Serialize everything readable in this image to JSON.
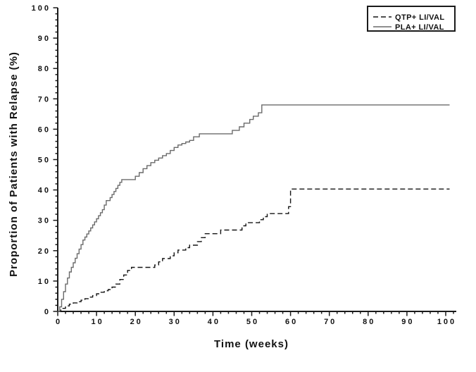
{
  "chart_data": {
    "type": "line",
    "subtype": "step-survival-curve",
    "xlabel": "Time (weeks)",
    "ylabel": "Proportion of Patients with Relapse (%)",
    "xlim": [
      0,
      102
    ],
    "ylim": [
      0,
      100
    ],
    "x_major_ticks": [
      0,
      10,
      20,
      30,
      40,
      50,
      60,
      70,
      80,
      90,
      100
    ],
    "x_minor_step": 2,
    "y_major_ticks": [
      0,
      10,
      20,
      30,
      40,
      50,
      60,
      70,
      80,
      90,
      100
    ],
    "y_minor_step": 2,
    "grid": false,
    "legend": {
      "position": "top-right",
      "entries": [
        {
          "label": "QTP+ LI/VAL",
          "style": "dashed",
          "color": "#151515"
        },
        {
          "label": "PLA+ LI/VAL",
          "style": "solid",
          "color": "#6a6a6a"
        }
      ]
    },
    "series": [
      {
        "name": "QTP+ LI/VAL",
        "style": "dashed",
        "color": "#151515",
        "final_value": 40.3,
        "points": [
          [
            0,
            0
          ],
          [
            0.8,
            1
          ],
          [
            2,
            1.8
          ],
          [
            3,
            2.4
          ],
          [
            4,
            2.8
          ],
          [
            5,
            3.2
          ],
          [
            6,
            3.7
          ],
          [
            7,
            4.2
          ],
          [
            8,
            4.7
          ],
          [
            9,
            5.2
          ],
          [
            10,
            5.8
          ],
          [
            11,
            6.3
          ],
          [
            12,
            6.8
          ],
          [
            13,
            7.2
          ],
          [
            14,
            8
          ],
          [
            15,
            9
          ],
          [
            16,
            10.5
          ],
          [
            17,
            12
          ],
          [
            18,
            13.5
          ],
          [
            19,
            14.5
          ],
          [
            25,
            15.3
          ],
          [
            26,
            16.3
          ],
          [
            27,
            17.4
          ],
          [
            29,
            18.3
          ],
          [
            30,
            19.3
          ],
          [
            31,
            20.2
          ],
          [
            33,
            21
          ],
          [
            34,
            21.8
          ],
          [
            36,
            23
          ],
          [
            37,
            24.3
          ],
          [
            38,
            25.6
          ],
          [
            42,
            26.8
          ],
          [
            47.5,
            28.2
          ],
          [
            48.5,
            29.2
          ],
          [
            52,
            30.2
          ],
          [
            53,
            31.2
          ],
          [
            54,
            32.2
          ],
          [
            59.5,
            34.5
          ],
          [
            60,
            40.3
          ],
          [
            101,
            40.3
          ]
        ]
      },
      {
        "name": "PLA+ LI/VAL",
        "style": "solid",
        "color": "#6a6a6a",
        "final_value": 68,
        "points": [
          [
            0,
            0
          ],
          [
            0.5,
            1.5
          ],
          [
            1,
            4
          ],
          [
            1.5,
            6.5
          ],
          [
            2,
            9
          ],
          [
            2.5,
            11
          ],
          [
            3,
            13
          ],
          [
            3.5,
            14.5
          ],
          [
            4,
            16
          ],
          [
            4.5,
            17.5
          ],
          [
            5,
            19
          ],
          [
            5.5,
            20.5
          ],
          [
            6,
            22
          ],
          [
            6.5,
            23.5
          ],
          [
            7,
            24.5
          ],
          [
            7.5,
            25.5
          ],
          [
            8,
            26.5
          ],
          [
            8.5,
            27.5
          ],
          [
            9,
            28.5
          ],
          [
            9.5,
            29.5
          ],
          [
            10,
            30.5
          ],
          [
            10.5,
            31.5
          ],
          [
            11,
            32.5
          ],
          [
            11.5,
            33.5
          ],
          [
            12,
            35
          ],
          [
            12.5,
            36.5
          ],
          [
            13.5,
            37.5
          ],
          [
            14,
            38.5
          ],
          [
            14.5,
            39.5
          ],
          [
            15,
            40.5
          ],
          [
            15.5,
            41.5
          ],
          [
            16,
            42.5
          ],
          [
            16.5,
            43.4
          ],
          [
            20,
            44.5
          ],
          [
            21,
            45.7
          ],
          [
            22,
            47
          ],
          [
            23,
            48
          ],
          [
            24,
            49
          ],
          [
            25,
            49.8
          ],
          [
            26,
            50.5
          ],
          [
            27,
            51.3
          ],
          [
            28,
            52
          ],
          [
            29,
            53
          ],
          [
            30,
            54
          ],
          [
            31,
            54.8
          ],
          [
            32,
            55.3
          ],
          [
            33,
            55.8
          ],
          [
            34,
            56.3
          ],
          [
            35,
            57.5
          ],
          [
            36.5,
            58.5
          ],
          [
            45,
            59.6
          ],
          [
            46.8,
            60.8
          ],
          [
            48,
            62
          ],
          [
            49.5,
            63.2
          ],
          [
            50.4,
            64.3
          ],
          [
            51.7,
            65.4
          ],
          [
            52.6,
            68
          ],
          [
            101,
            68
          ]
        ]
      }
    ]
  },
  "colors": {
    "axis": "#1a1a1a",
    "text": "#111111",
    "legend_border": "#1a1a1a",
    "background": "#ffffff"
  }
}
